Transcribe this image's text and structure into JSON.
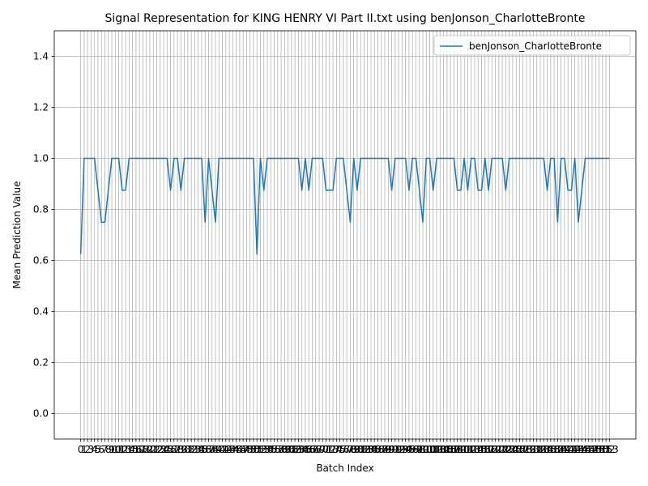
{
  "chart_data": {
    "type": "line",
    "title": "Signal Representation for KING HENRY VI Part II.txt using benJonson_CharlotteBronte",
    "x_label": "Batch Index",
    "y_label": "Mean Prediction Value",
    "x": [
      0,
      1,
      2,
      3,
      4,
      5,
      6,
      7,
      8,
      9,
      10,
      11,
      12,
      13,
      14,
      15,
      16,
      17,
      18,
      19,
      20,
      21,
      22,
      23,
      24,
      25,
      26,
      27,
      28,
      29,
      30,
      31,
      32,
      33,
      34,
      35,
      36,
      37,
      38,
      39,
      40,
      41,
      42,
      43,
      44,
      45,
      46,
      47,
      48,
      49,
      50,
      51,
      52,
      53,
      54,
      55,
      56,
      57,
      58,
      59,
      60,
      61,
      62,
      63,
      64,
      65,
      66,
      67,
      68,
      69,
      70,
      71,
      72,
      73,
      74,
      75,
      76,
      77,
      78,
      79,
      80,
      81,
      82,
      83,
      84,
      85,
      86,
      87,
      88,
      89,
      90,
      91,
      92,
      93,
      94,
      95,
      96,
      97,
      98,
      99,
      100,
      101,
      102,
      103,
      104,
      105,
      106,
      107,
      108,
      109,
      110,
      111,
      112,
      113,
      114,
      115,
      116,
      117,
      118,
      119,
      120,
      121,
      122,
      123,
      124,
      125,
      126,
      127,
      128,
      129,
      130,
      131,
      132,
      133,
      134,
      135,
      136,
      137,
      138,
      139,
      140,
      141,
      142,
      143,
      144,
      145,
      146,
      147,
      148,
      149,
      150,
      151,
      152,
      153
    ],
    "series": [
      {
        "name": "benJonson_CharlotteBronte",
        "color": "#1f77b4",
        "values": [
          0.625,
          1,
          1,
          1,
          1,
          0.875,
          0.75,
          0.75,
          0.875,
          1,
          1,
          1,
          0.875,
          0.875,
          1,
          1,
          1,
          1,
          1,
          1,
          1,
          1,
          1,
          1,
          1,
          1,
          0.875,
          1,
          1,
          0.875,
          1,
          1,
          1,
          1,
          1,
          1,
          0.75,
          1,
          0.875,
          0.75,
          1,
          1,
          1,
          1,
          1,
          1,
          1,
          1,
          1,
          1,
          1,
          0.625,
          1,
          0.875,
          1,
          1,
          1,
          1,
          1,
          1,
          1,
          1,
          1,
          1,
          0.875,
          1,
          0.875,
          1,
          1,
          1,
          1,
          0.875,
          0.875,
          0.875,
          1,
          1,
          1,
          0.875,
          0.75,
          1,
          0.875,
          1,
          1,
          1,
          1,
          1,
          1,
          1,
          1,
          1,
          0.875,
          1,
          1,
          1,
          1,
          0.875,
          1,
          1,
          0.875,
          0.75,
          1,
          1,
          0.875,
          1,
          1,
          1,
          1,
          1,
          1,
          0.875,
          0.875,
          1,
          0.875,
          1,
          1,
          0.875,
          0.875,
          1,
          0.875,
          1,
          1,
          1,
          1,
          0.875,
          1,
          1,
          1,
          1,
          1,
          1,
          1,
          1,
          1,
          1,
          1,
          0.875,
          1,
          1,
          0.75,
          1,
          1,
          0.875,
          0.875,
          1,
          0.75,
          0.875,
          1,
          1,
          1,
          1,
          1,
          1,
          1,
          1
        ]
      }
    ],
    "xlim": [
      -7.65,
      160.65
    ],
    "xticks": [
      0,
      1,
      2,
      3,
      4,
      5,
      6,
      7,
      8,
      9,
      10,
      11,
      12,
      13,
      14,
      15,
      16,
      17,
      18,
      19,
      20,
      21,
      22,
      23,
      24,
      25,
      26,
      27,
      28,
      29,
      30,
      31,
      32,
      33,
      34,
      35,
      36,
      37,
      38,
      39,
      40,
      41,
      42,
      43,
      44,
      45,
      46,
      47,
      48,
      49,
      50,
      51,
      52,
      53,
      54,
      55,
      56,
      57,
      58,
      59,
      60,
      61,
      62,
      63,
      64,
      65,
      66,
      67,
      68,
      69,
      70,
      71,
      72,
      73,
      74,
      75,
      76,
      77,
      78,
      79,
      80,
      81,
      82,
      83,
      84,
      85,
      86,
      87,
      88,
      89,
      90,
      91,
      92,
      93,
      94,
      95,
      96,
      97,
      98,
      99,
      100,
      101,
      102,
      103,
      104,
      105,
      106,
      107,
      108,
      109,
      110,
      111,
      112,
      113,
      114,
      115,
      116,
      117,
      118,
      119,
      120,
      121,
      122,
      123,
      124,
      125,
      126,
      127,
      128,
      129,
      130,
      131,
      132,
      133,
      134,
      135,
      136,
      137,
      138,
      139,
      140,
      141,
      142,
      143,
      144,
      145,
      146,
      147,
      148,
      149,
      150,
      151,
      152,
      153
    ],
    "ylim": [
      -0.1,
      1.5
    ],
    "yticks": [
      {
        "value": 0,
        "label": "0.0"
      },
      0.2,
      0.4,
      0.6,
      0.8,
      {
        "value": 1,
        "label": "1.0"
      },
      1.2,
      1.4
    ],
    "grid": true,
    "legend": "upper right"
  }
}
